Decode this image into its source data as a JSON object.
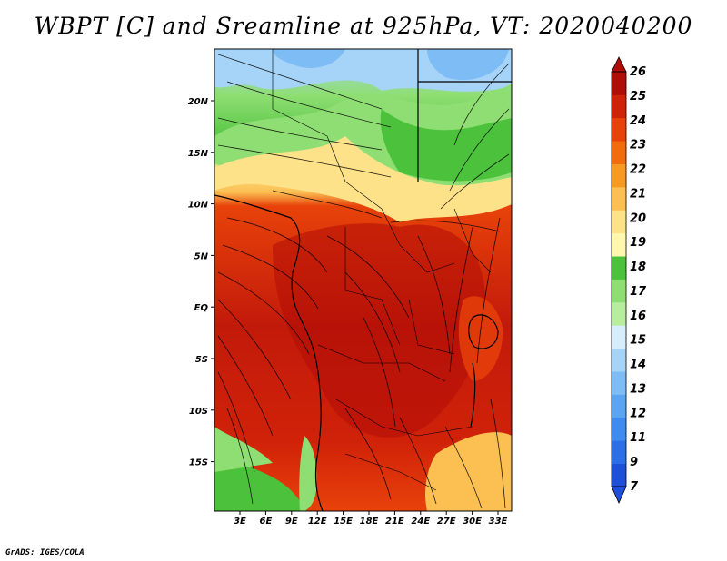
{
  "title": "WBPT [C] and Sreamline at 925hPa, VT: 2020040200",
  "credit": "GrADS: IGES/COLA",
  "map": {
    "lon_labels": [
      "3E",
      "6E",
      "9E",
      "12E",
      "15E",
      "18E",
      "21E",
      "24E",
      "27E",
      "30E",
      "33E"
    ],
    "lat_labels": [
      "20N",
      "15N",
      "10N",
      "5N",
      "EQ",
      "5S",
      "10S",
      "15S"
    ]
  },
  "colorbar": {
    "labels": [
      "7",
      "9",
      "11",
      "12",
      "13",
      "14",
      "15",
      "16",
      "17",
      "18",
      "19",
      "20",
      "21",
      "22",
      "23",
      "24",
      "25",
      "26"
    ],
    "colors": [
      "#1e4fd8",
      "#2b6ee8",
      "#3f8bf0",
      "#5aa4f2",
      "#7dbcf5",
      "#a6d4f8",
      "#d6eefc",
      "#b6ee9e",
      "#8fde73",
      "#4cc23c",
      "#fff7b0",
      "#fde28a",
      "#fbbf52",
      "#f79a21",
      "#f26c0d",
      "#e8420a",
      "#d02209",
      "#b00c08"
    ]
  }
}
